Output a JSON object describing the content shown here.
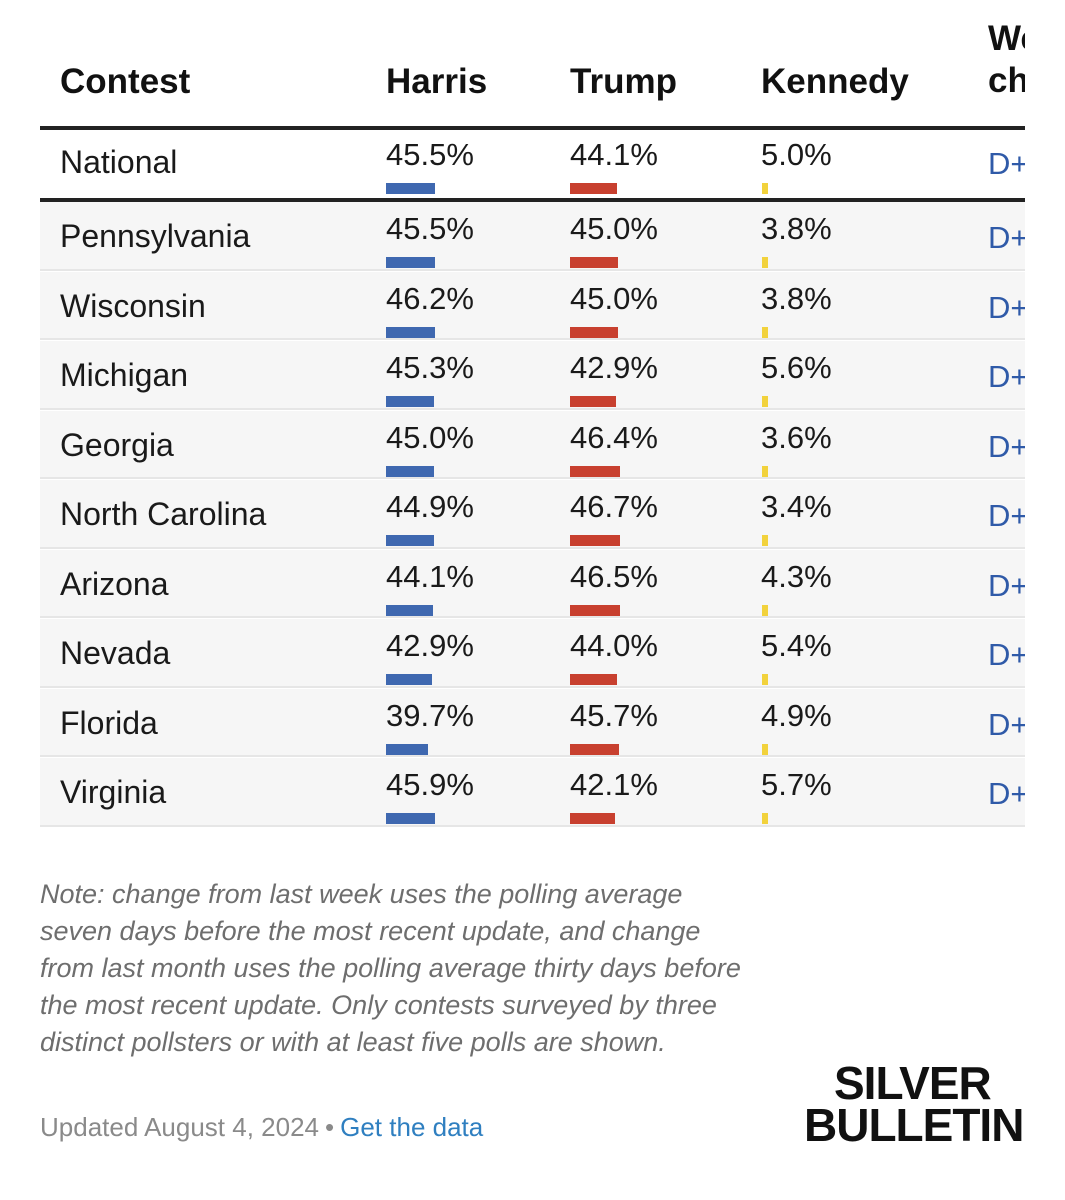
{
  "columns": {
    "contest": "Contest",
    "harris": "Harris",
    "trump": "Trump",
    "kennedy": "Kennedy",
    "week_change_line1": "Week",
    "week_change_line2": "change"
  },
  "colors": {
    "harris": "#3f68b0",
    "trump": "#c8402f",
    "kennedy": "#f2d23c",
    "margin_text": "#2f5aa8"
  },
  "chart_data": {
    "type": "table",
    "title": "",
    "columns": [
      "Contest",
      "Harris",
      "Trump",
      "Kennedy",
      "Week change"
    ],
    "rows": [
      {
        "contest": "National",
        "harris": "45.5%",
        "trump": "44.1%",
        "kennedy": "5.0%",
        "week_change": "D+"
      },
      {
        "contest": "Pennsylvania",
        "harris": "45.5%",
        "trump": "45.0%",
        "kennedy": "3.8%",
        "week_change": "D+"
      },
      {
        "contest": "Wisconsin",
        "harris": "46.2%",
        "trump": "45.0%",
        "kennedy": "3.8%",
        "week_change": "D+"
      },
      {
        "contest": "Michigan",
        "harris": "45.3%",
        "trump": "42.9%",
        "kennedy": "5.6%",
        "week_change": "D+"
      },
      {
        "contest": "Georgia",
        "harris": "45.0%",
        "trump": "46.4%",
        "kennedy": "3.6%",
        "week_change": "D+"
      },
      {
        "contest": "North Carolina",
        "harris": "44.9%",
        "trump": "46.7%",
        "kennedy": "3.4%",
        "week_change": "D+"
      },
      {
        "contest": "Arizona",
        "harris": "44.1%",
        "trump": "46.5%",
        "kennedy": "4.3%",
        "week_change": "D+"
      },
      {
        "contest": "Nevada",
        "harris": "42.9%",
        "trump": "44.0%",
        "kennedy": "5.4%",
        "week_change": "D+"
      },
      {
        "contest": "Florida",
        "harris": "39.7%",
        "trump": "45.7%",
        "kennedy": "4.9%",
        "week_change": "D+"
      },
      {
        "contest": "Virginia",
        "harris": "45.9%",
        "trump": "42.1%",
        "kennedy": "5.7%",
        "week_change": "D+"
      }
    ]
  },
  "note": "Note: change from last week uses the polling average seven days before the most recent update, and change from last month uses the polling average thirty days before the most recent update. Only contests surveyed by three distinct pollsters or with at least five polls are shown.",
  "footer": {
    "updated": "Updated August 4, 2024",
    "separator": "•",
    "get_data_link": "Get the data"
  },
  "logo": {
    "line1": "SILVER",
    "line2": "BULLETIN"
  }
}
